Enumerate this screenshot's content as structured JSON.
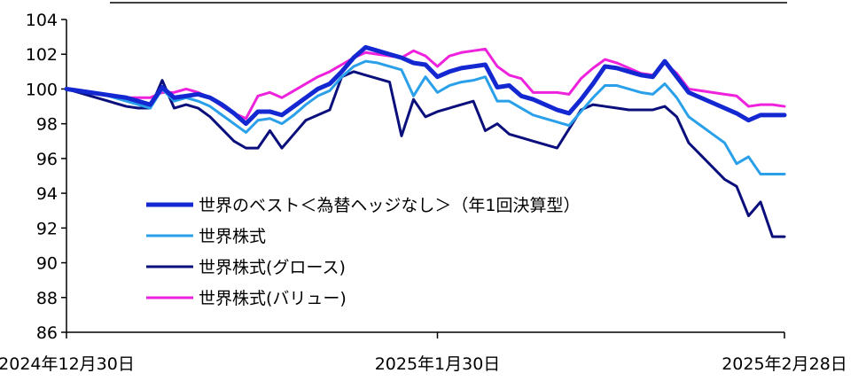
{
  "chart_data": {
    "type": "line",
    "title": "",
    "xlabel": "",
    "ylabel": "",
    "ylim": [
      86,
      104
    ],
    "yticks": [
      "86",
      "88",
      "90",
      "92",
      "94",
      "96",
      "98",
      "100",
      "102",
      "104"
    ],
    "x_dates": [
      "2024-12-30",
      "2024-12-31",
      "2025-01-01",
      "2025-01-02",
      "2025-01-03",
      "2025-01-04",
      "2025-01-05",
      "2025-01-06",
      "2025-01-07",
      "2025-01-08",
      "2025-01-09",
      "2025-01-10",
      "2025-01-11",
      "2025-01-12",
      "2025-01-13",
      "2025-01-14",
      "2025-01-15",
      "2025-01-16",
      "2025-01-17",
      "2025-01-18",
      "2025-01-19",
      "2025-01-20",
      "2025-01-21",
      "2025-01-22",
      "2025-01-23",
      "2025-01-24",
      "2025-01-25",
      "2025-01-26",
      "2025-01-27",
      "2025-01-28",
      "2025-01-29",
      "2025-01-30",
      "2025-01-31",
      "2025-02-01",
      "2025-02-02",
      "2025-02-03",
      "2025-02-04",
      "2025-02-05",
      "2025-02-06",
      "2025-02-07",
      "2025-02-08",
      "2025-02-09",
      "2025-02-10",
      "2025-02-11",
      "2025-02-12",
      "2025-02-13",
      "2025-02-14",
      "2025-02-15",
      "2025-02-16",
      "2025-02-17",
      "2025-02-18",
      "2025-02-19",
      "2025-02-20",
      "2025-02-21",
      "2025-02-22",
      "2025-02-23",
      "2025-02-24",
      "2025-02-25",
      "2025-02-26",
      "2025-02-27",
      "2025-02-28"
    ],
    "xticks": [
      {
        "date": "2024-12-30",
        "label": "2024年12月30日"
      },
      {
        "date": "2025-01-30",
        "label": "2025年1月30日"
      },
      {
        "date": "2025-02-28",
        "label": "2025年2月28日"
      }
    ],
    "series": [
      {
        "name": "世界のベスト＜為替ヘッジなし＞（年1回決算型）",
        "color": "#1428d2",
        "width": 5,
        "values": [
          100,
          99.9,
          99.8,
          99.7,
          99.6,
          99.5,
          99.3,
          99.1,
          100.1,
          99.5,
          99.6,
          99.7,
          99.5,
          99.1,
          98.6,
          98.0,
          98.7,
          98.7,
          98.5,
          99.0,
          99.5,
          100.0,
          100.3,
          101.0,
          101.8,
          102.4,
          102.2,
          102.0,
          101.8,
          101.5,
          101.4,
          100.7,
          101.0,
          101.2,
          101.3,
          101.4,
          100.1,
          100.2,
          99.6,
          99.4,
          99.1,
          98.8,
          98.6,
          99.4,
          100.3,
          101.3,
          101.2,
          101.0,
          100.8,
          100.7,
          101.6,
          100.7,
          99.8,
          99.5,
          99.2,
          98.9,
          98.6,
          98.2,
          98.5,
          98.5,
          98.5
        ]
      },
      {
        "name": "世界株式",
        "color": "#2aa0ea",
        "width": 3,
        "values": [
          100,
          99.9,
          99.8,
          99.7,
          99.5,
          99.3,
          99.1,
          98.9,
          100.0,
          99.3,
          99.5,
          99.3,
          99.0,
          98.5,
          98.0,
          97.5,
          98.2,
          98.3,
          98.0,
          98.5,
          99.1,
          99.6,
          99.9,
          100.7,
          101.3,
          101.6,
          101.5,
          101.3,
          101.1,
          99.6,
          100.7,
          99.8,
          100.2,
          100.4,
          100.5,
          100.7,
          99.3,
          99.3,
          98.9,
          98.5,
          98.3,
          98.1,
          97.9,
          98.7,
          99.5,
          100.2,
          100.2,
          100.0,
          99.8,
          99.7,
          100.3,
          99.5,
          98.4,
          97.9,
          97.4,
          96.9,
          95.7,
          96.1,
          95.1,
          95.1,
          95.1
        ]
      },
      {
        "name": "世界株式(グロース)",
        "color": "#0a0f7c",
        "width": 3,
        "values": [
          100,
          99.8,
          99.6,
          99.4,
          99.2,
          99.0,
          98.9,
          98.9,
          100.5,
          98.9,
          99.1,
          98.9,
          98.4,
          97.7,
          97.0,
          96.6,
          96.6,
          97.6,
          96.6,
          97.4,
          98.2,
          98.5,
          98.8,
          100.7,
          101.0,
          100.8,
          100.6,
          100.4,
          97.3,
          99.4,
          98.4,
          98.7,
          98.9,
          99.1,
          99.3,
          97.6,
          98.0,
          97.4,
          97.2,
          97.0,
          96.8,
          96.6,
          97.7,
          98.8,
          99.1,
          99.0,
          98.9,
          98.8,
          98.8,
          98.8,
          99.0,
          98.4,
          96.9,
          96.2,
          95.5,
          94.8,
          94.4,
          92.7,
          93.5,
          91.5,
          91.5
        ]
      },
      {
        "name": "世界株式(バリュー)",
        "color": "#ee22dd",
        "width": 3,
        "values": [
          100,
          99.9,
          99.8,
          99.7,
          99.6,
          99.5,
          99.5,
          99.5,
          99.8,
          99.8,
          100.0,
          99.8,
          99.5,
          99.0,
          98.6,
          98.3,
          99.6,
          99.8,
          99.5,
          99.9,
          100.3,
          100.7,
          101.0,
          101.4,
          101.8,
          102.1,
          102.0,
          101.9,
          101.8,
          102.2,
          101.9,
          101.3,
          101.9,
          102.1,
          102.2,
          102.3,
          101.3,
          100.8,
          100.6,
          99.8,
          99.8,
          99.8,
          99.7,
          100.6,
          101.2,
          101.7,
          101.5,
          101.2,
          100.9,
          100.8,
          101.5,
          100.9,
          100.0,
          99.9,
          99.8,
          99.7,
          99.6,
          99.0,
          99.1,
          99.1,
          99.0
        ]
      }
    ],
    "legend_position": "lower-left"
  }
}
